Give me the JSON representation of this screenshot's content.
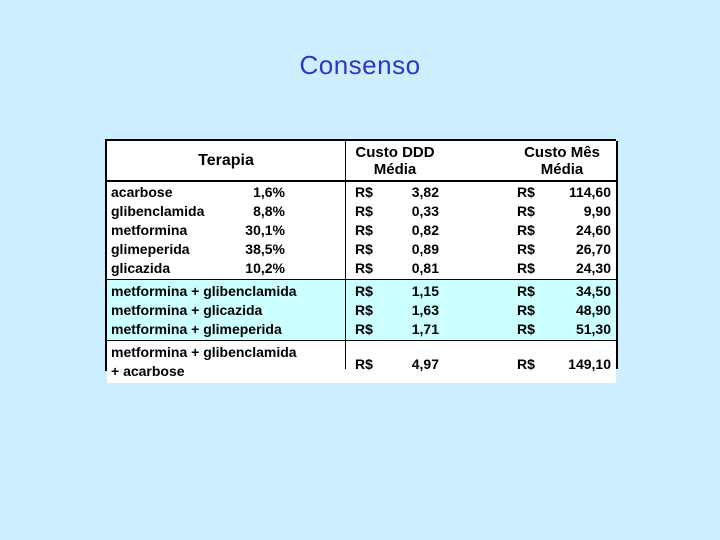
{
  "title": "Consenso",
  "table": {
    "headers": {
      "terapia": "Terapia",
      "custo_ddd": [
        "Custo DDD",
        "Média"
      ],
      "custo_mes": [
        "Custo Mês",
        "Média"
      ]
    },
    "currency": "R$",
    "groups": [
      {
        "background": "#ffffff",
        "rows": [
          {
            "terapia": "acarbose",
            "pct": "1,6%",
            "ddd": "3,82",
            "mes": "114,60"
          },
          {
            "terapia": "glibenclamida",
            "pct": "8,8%",
            "ddd": "0,33",
            "mes": "9,90"
          },
          {
            "terapia": "metformina",
            "pct": "30,1%",
            "ddd": "0,82",
            "mes": "24,60"
          },
          {
            "terapia": "glimeperida",
            "pct": "38,5%",
            "ddd": "0,89",
            "mes": "26,70"
          },
          {
            "terapia": "glicazida",
            "pct": "10,2%",
            "ddd": "0,81",
            "mes": "24,30"
          }
        ]
      },
      {
        "background": "#ccffff",
        "rows": [
          {
            "terapia": "metformina + glibenclamida",
            "ddd": "1,15",
            "mes": "34,50"
          },
          {
            "terapia": "metformina + glicazida",
            "ddd": "1,63",
            "mes": "48,90"
          },
          {
            "terapia": "metformina + glimeperida",
            "ddd": "1,71",
            "mes": "51,30"
          }
        ]
      },
      {
        "background": "#ffffff",
        "rows": [
          {
            "terapia": "metformina + glibenclamida",
            "terapia_line2": "+ acarbose",
            "ddd": "4,97",
            "mes": "149,10"
          }
        ]
      }
    ]
  }
}
